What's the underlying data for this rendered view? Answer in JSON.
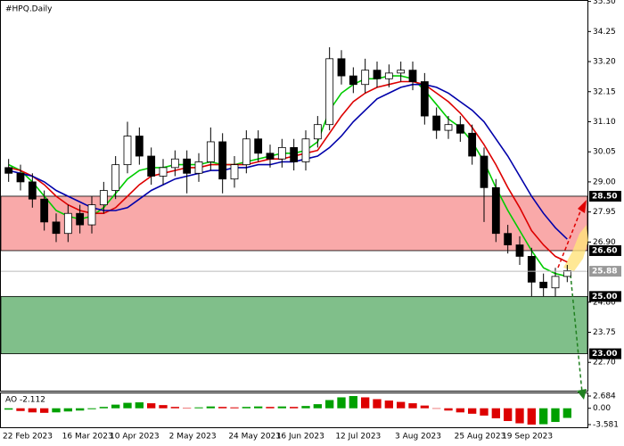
{
  "chart_data": {
    "type": "candlestick",
    "title": "#HPQ.Daily",
    "categories": [
      "22 Feb 2023",
      null,
      null,
      null,
      null,
      "16 Mar 2023",
      null,
      null,
      null,
      "10 Apr 2023",
      null,
      null,
      null,
      null,
      "2 May 2023",
      null,
      null,
      null,
      null,
      "24 May 2023",
      null,
      null,
      null,
      "16 Jun 2023",
      null,
      null,
      null,
      null,
      "12 Jul 2023",
      null,
      null,
      null,
      null,
      "3 Aug 2023",
      null,
      null,
      null,
      null,
      "25 Aug 2023",
      null,
      null,
      null,
      "19 Sep 2023",
      null,
      null,
      null,
      null,
      null
    ],
    "candles": [
      [
        29.5,
        29.8,
        29.0,
        29.3
      ],
      [
        29.3,
        29.6,
        28.7,
        29.0
      ],
      [
        29.0,
        29.3,
        28.1,
        28.4
      ],
      [
        28.4,
        28.7,
        27.3,
        27.6
      ],
      [
        27.6,
        27.9,
        26.9,
        27.2
      ],
      [
        27.2,
        28.2,
        26.9,
        27.9
      ],
      [
        27.9,
        28.2,
        27.2,
        27.5
      ],
      [
        27.5,
        28.5,
        27.2,
        28.2
      ],
      [
        28.2,
        29.0,
        27.9,
        28.7
      ],
      [
        28.7,
        29.9,
        28.4,
        29.6
      ],
      [
        29.6,
        31.1,
        29.3,
        30.6
      ],
      [
        30.6,
        30.9,
        29.6,
        29.9
      ],
      [
        29.9,
        30.2,
        28.9,
        29.2
      ],
      [
        29.2,
        29.8,
        28.9,
        29.5
      ],
      [
        29.5,
        30.1,
        29.2,
        29.8
      ],
      [
        29.8,
        30.1,
        28.6,
        29.3
      ],
      [
        29.3,
        30.0,
        29.0,
        29.7
      ],
      [
        29.7,
        30.9,
        29.4,
        30.4
      ],
      [
        30.4,
        30.7,
        28.6,
        29.1
      ],
      [
        29.1,
        29.9,
        28.8,
        29.6
      ],
      [
        29.6,
        30.8,
        29.3,
        30.5
      ],
      [
        30.5,
        30.8,
        29.7,
        30.0
      ],
      [
        30.0,
        30.3,
        29.5,
        29.8
      ],
      [
        29.8,
        30.5,
        29.5,
        30.2
      ],
      [
        30.2,
        30.5,
        29.4,
        29.7
      ],
      [
        29.7,
        30.8,
        29.4,
        30.5
      ],
      [
        30.5,
        31.3,
        30.2,
        31.0
      ],
      [
        31.0,
        33.7,
        30.8,
        33.3
      ],
      [
        33.3,
        33.6,
        32.4,
        32.7
      ],
      [
        32.7,
        33.0,
        32.1,
        32.4
      ],
      [
        32.4,
        33.3,
        32.1,
        32.9
      ],
      [
        32.9,
        33.2,
        32.3,
        32.6
      ],
      [
        32.6,
        33.1,
        32.3,
        32.8
      ],
      [
        32.8,
        33.2,
        32.5,
        32.9
      ],
      [
        32.9,
        33.2,
        32.2,
        32.5
      ],
      [
        32.5,
        32.8,
        31.0,
        31.3
      ],
      [
        31.3,
        31.6,
        30.5,
        30.8
      ],
      [
        30.8,
        31.3,
        30.5,
        31.0
      ],
      [
        31.0,
        31.3,
        30.4,
        30.7
      ],
      [
        30.7,
        31.0,
        29.6,
        29.9
      ],
      [
        29.9,
        30.2,
        27.6,
        28.8
      ],
      [
        28.8,
        29.1,
        26.9,
        27.2
      ],
      [
        27.2,
        27.5,
        26.5,
        26.8
      ],
      [
        26.8,
        27.1,
        26.1,
        26.4
      ],
      [
        26.4,
        26.7,
        25.0,
        25.5
      ],
      [
        25.5,
        25.8,
        25.0,
        25.3
      ],
      [
        25.3,
        26.0,
        25.0,
        25.7
      ],
      [
        25.7,
        26.1,
        25.5,
        25.9
      ]
    ],
    "lines": [
      {
        "color": "#00cc00",
        "values": [
          29.6,
          29.4,
          29.0,
          28.5,
          28.0,
          27.8,
          27.7,
          27.8,
          28.1,
          28.6,
          29.1,
          29.4,
          29.5,
          29.5,
          29.6,
          29.6,
          29.6,
          29.7,
          29.6,
          29.6,
          29.7,
          29.8,
          29.9,
          30.0,
          30.0,
          30.1,
          30.4,
          31.5,
          32.1,
          32.4,
          32.6,
          32.6,
          32.7,
          32.7,
          32.6,
          32.2,
          31.7,
          31.2,
          30.9,
          30.4,
          29.7,
          28.8,
          28.0,
          27.3,
          26.6,
          26.0,
          25.8,
          25.7
        ]
      },
      {
        "color": "#dd0000",
        "values": [
          29.5,
          29.4,
          29.2,
          28.9,
          28.5,
          28.2,
          28.0,
          27.9,
          27.9,
          28.1,
          28.5,
          28.9,
          29.2,
          29.3,
          29.4,
          29.5,
          29.5,
          29.6,
          29.6,
          29.6,
          29.6,
          29.7,
          29.8,
          29.8,
          29.9,
          30.0,
          30.1,
          30.7,
          31.3,
          31.8,
          32.1,
          32.3,
          32.4,
          32.5,
          32.5,
          32.4,
          32.1,
          31.8,
          31.4,
          30.9,
          30.3,
          29.6,
          28.8,
          28.1,
          27.3,
          26.8,
          26.4,
          26.2
        ]
      },
      {
        "color": "#0000aa",
        "values": [
          29.4,
          29.3,
          29.2,
          29.0,
          28.7,
          28.5,
          28.3,
          28.1,
          28.0,
          28.0,
          28.1,
          28.4,
          28.7,
          28.9,
          29.1,
          29.2,
          29.3,
          29.4,
          29.4,
          29.5,
          29.5,
          29.6,
          29.6,
          29.7,
          29.7,
          29.8,
          29.9,
          30.2,
          30.6,
          31.1,
          31.5,
          31.9,
          32.1,
          32.3,
          32.4,
          32.4,
          32.3,
          32.1,
          31.8,
          31.5,
          31.1,
          30.5,
          29.9,
          29.2,
          28.5,
          27.9,
          27.4,
          27.0
        ]
      }
    ],
    "ylim": [
      21.71,
      35.35
    ],
    "yticks": [
      {
        "value": 35.3,
        "label": "35.30"
      },
      {
        "value": 34.25,
        "label": "34.25"
      },
      {
        "value": 33.2,
        "label": "33.20"
      },
      {
        "value": 32.15,
        "label": "32.15"
      },
      {
        "value": 31.1,
        "label": "31.10"
      },
      {
        "value": 30.05,
        "label": "30.05"
      },
      {
        "value": 29,
        "label": "29.00"
      },
      {
        "value": 27.95,
        "label": "27.95"
      },
      {
        "value": 26.9,
        "label": "26.90"
      },
      {
        "value": 24.8,
        "label": "24.80"
      },
      {
        "value": 23.75,
        "label": "23.75"
      },
      {
        "value": 22.7,
        "label": "22.70"
      }
    ],
    "levels": [
      {
        "value": 28.5,
        "label": "28.50"
      },
      {
        "value": 26.6,
        "label": "26.60"
      },
      {
        "value": 25.88,
        "label": "25.88"
      },
      {
        "value": 25,
        "label": "25.00"
      },
      {
        "value": 23,
        "label": "23.00"
      }
    ],
    "zones": [
      {
        "from": 28.5,
        "to": 26.6,
        "color": "#f9a9a9"
      },
      {
        "from": 25,
        "to": 23,
        "color": "#80bf8a"
      }
    ],
    "indicator": {
      "title": "AO -2.112",
      "up_color": "#00a000",
      "down_color": "#dd0000",
      "values": [
        -0.3,
        -0.6,
        -0.9,
        -1.0,
        -0.9,
        -0.7,
        -0.5,
        -0.2,
        0.3,
        0.8,
        1.2,
        1.3,
        1.1,
        0.7,
        0.3,
        0.1,
        0.2,
        0.4,
        0.3,
        0.2,
        0.3,
        0.4,
        0.3,
        0.4,
        0.3,
        0.5,
        0.9,
        1.8,
        2.4,
        2.684,
        2.4,
        2.0,
        1.7,
        1.4,
        1.1,
        0.6,
        0.0,
        -0.5,
        -0.9,
        -1.2,
        -1.6,
        -2.2,
        -2.8,
        -3.3,
        -3.581,
        -3.5,
        -3.0,
        -2.112
      ],
      "ylim": [
        -3.581,
        2.684
      ],
      "yticks": [
        {
          "value": 2.684,
          "label": "2.684"
        },
        {
          "value": 0,
          "label": "0.00"
        },
        {
          "value": -3.581,
          "label": "-3.581"
        }
      ]
    }
  }
}
